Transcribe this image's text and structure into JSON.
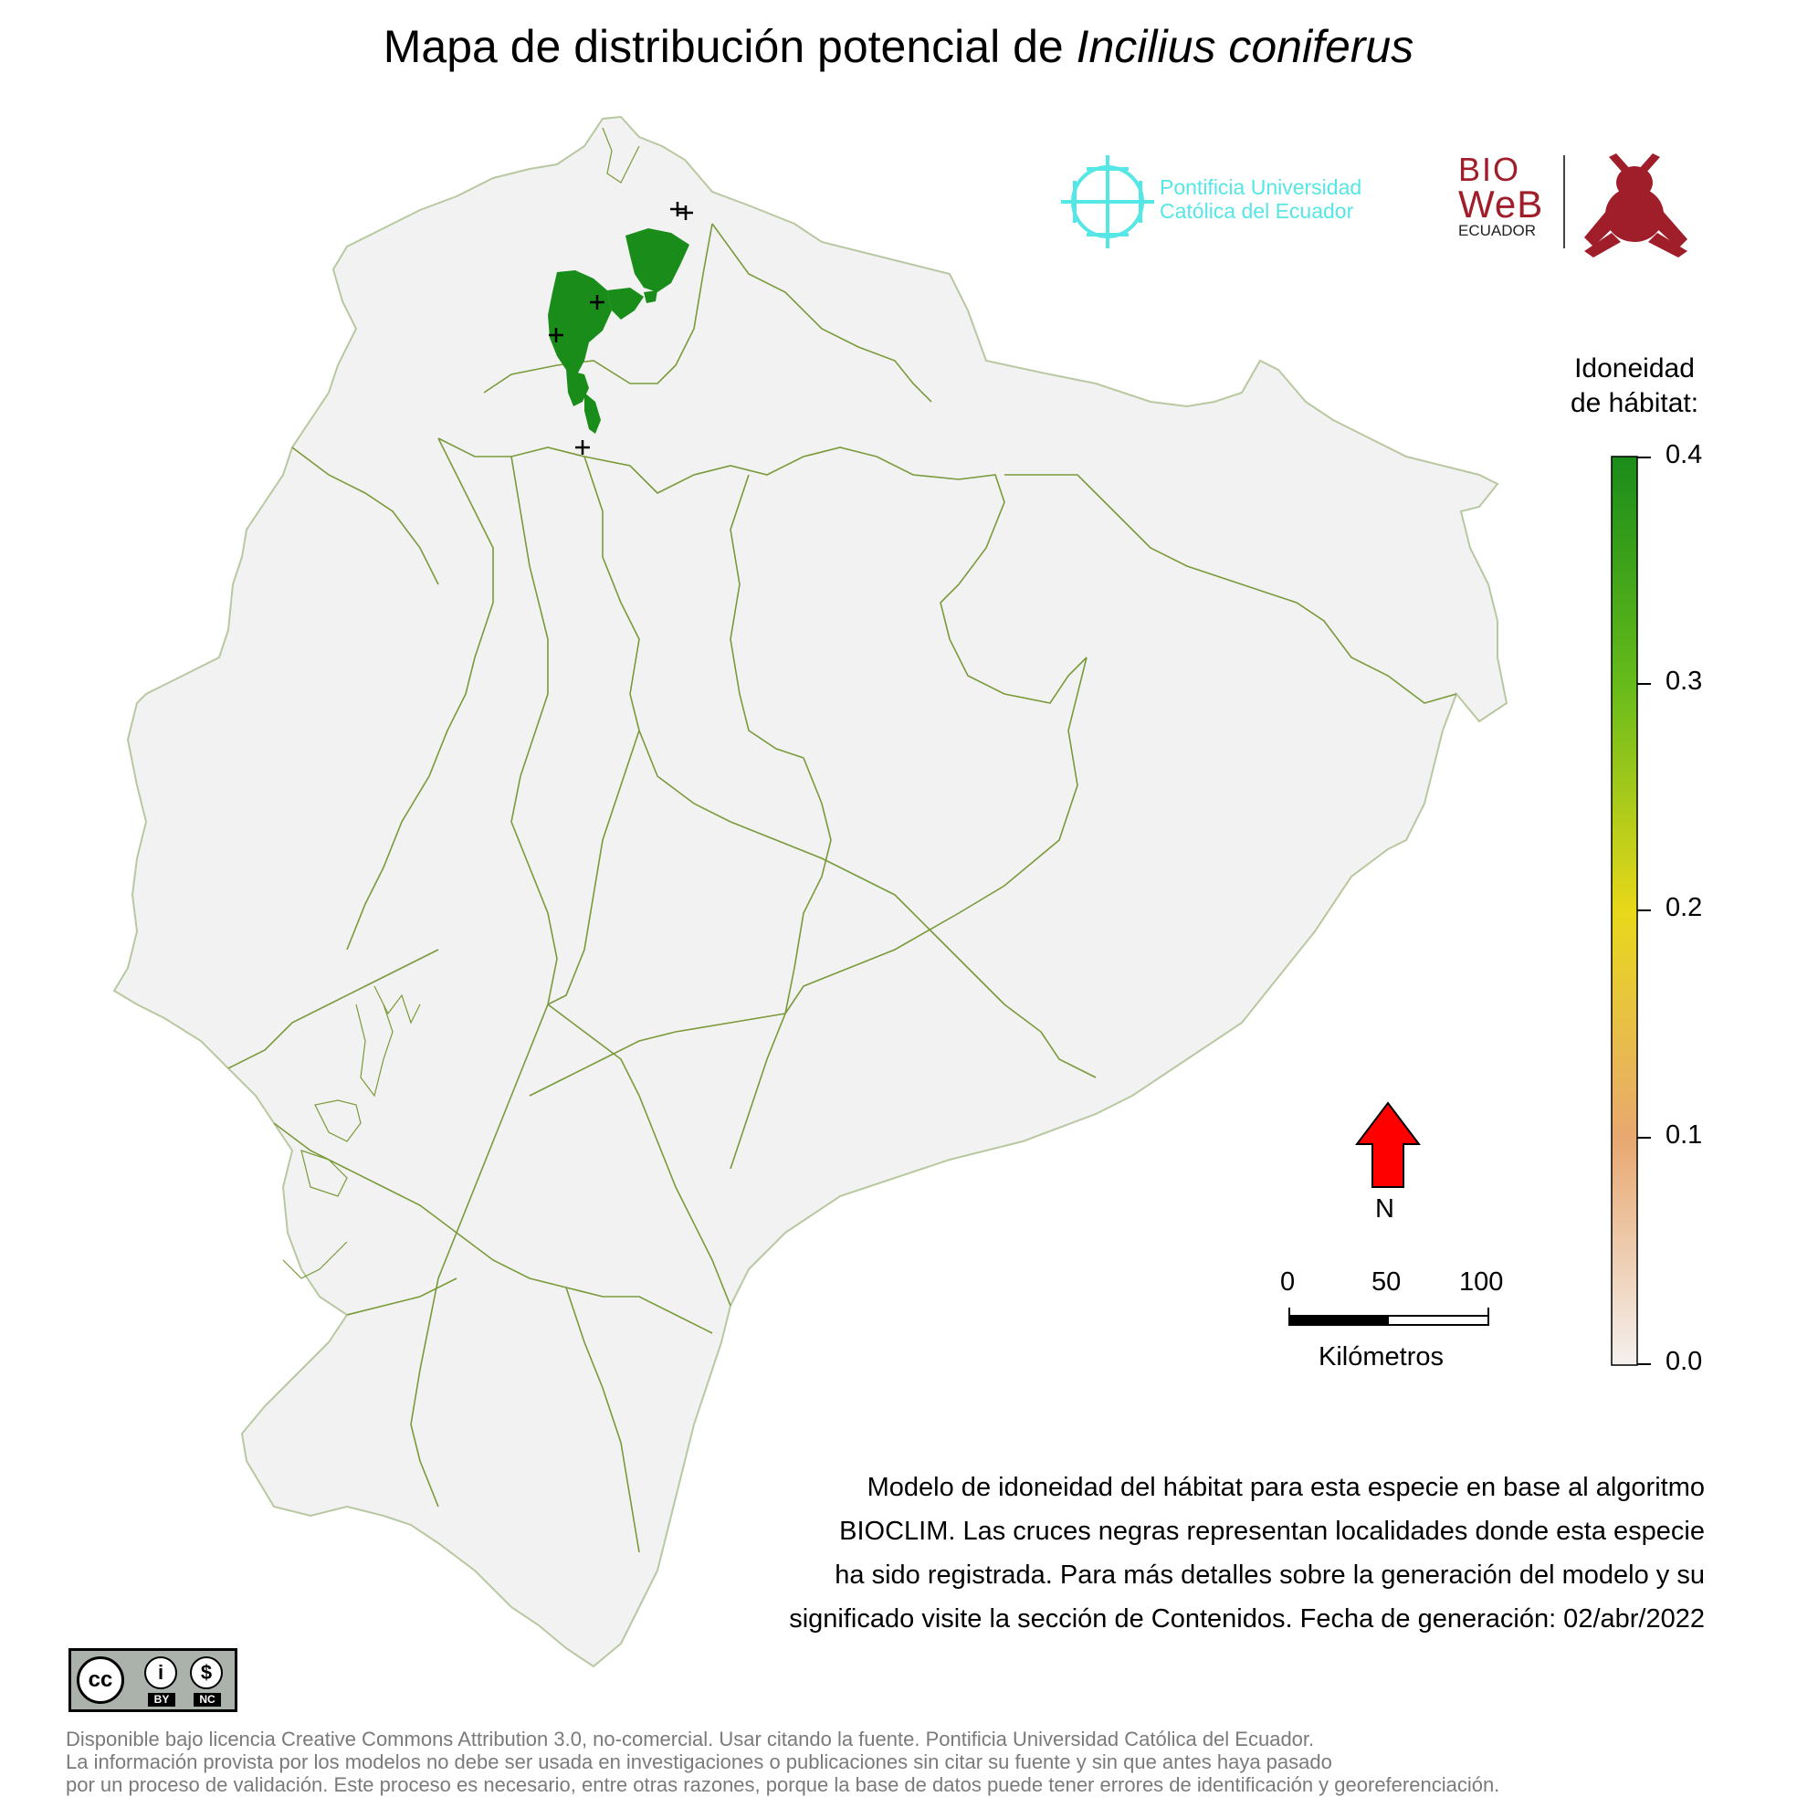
{
  "title": {
    "prefix": "Mapa de distribución potencial de",
    "species": "Incilius coniferus"
  },
  "legend": {
    "title_line1": "Idoneidad",
    "title_line2": "de hábitat:",
    "ticks": [
      "0.4",
      "0.3",
      "0.2",
      "0.1",
      "0.0"
    ],
    "colors": [
      "#1a8c1a",
      "#66bb1a",
      "#e8d81a",
      "#e8a870",
      "#f4f0ee"
    ]
  },
  "logos": {
    "puce_line1": "Pontificia Universidad",
    "puce_line2": "Católica del Ecuador",
    "bioweb_line1": "BIO",
    "bioweb_line2": "WeB",
    "bioweb_line3": "ECUADOR"
  },
  "north": {
    "label": "N",
    "arrow_color": "#ff0000"
  },
  "scale_bar": {
    "ticks": [
      "0",
      "50",
      "100"
    ],
    "unit": "Kilómetros"
  },
  "caption": [
    "Modelo de idoneidad del hábitat para esta especie en base al algoritmo",
    "BIOCLIM. Las cruces negras representan localidades donde esta especie",
    "ha sido registrada. Para más detalles sobre la generación del modelo y su",
    "significado visite la sección de Contenidos. Fecha de generación: 02/abr/2022"
  ],
  "cc_badge": {
    "by": "BY",
    "nc": "NC",
    "cc": "cc"
  },
  "license": [
    "Disponible bajo licencia Creative Commons Attribution 3.0, no-comercial. Usar citando la fuente. Pontificia Universidad Católica del Ecuador.",
    "La información provista por los modelos no debe ser usada en investigaciones o publicaciones sin citar su fuente y sin que antes haya pasado",
    "por un proceso de validación. Este proceso es necesario, entre otras razones, porque la base de datos puede tener errores de identificación y georeferenciación."
  ],
  "map": {
    "land_color": "#f2f2f2",
    "border_color": "#7a9a3a",
    "habitat_color": "#1a8c1a",
    "occurrence_count": 6
  }
}
